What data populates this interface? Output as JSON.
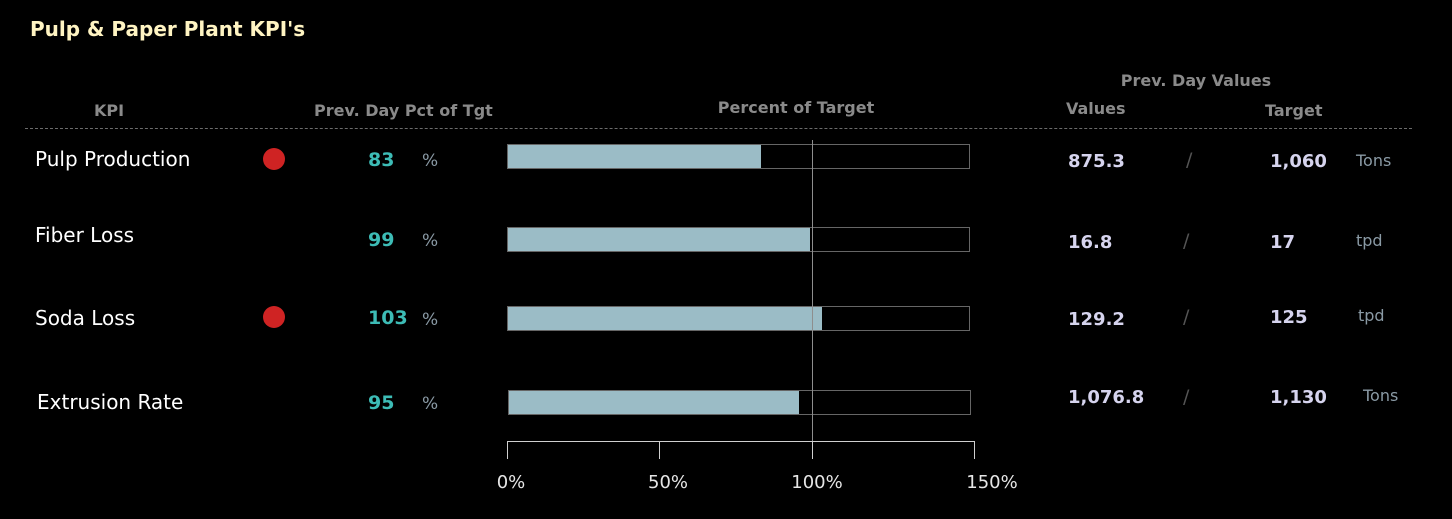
{
  "title": "Pulp & Paper Plant KPI's",
  "headers": {
    "kpi": "KPI",
    "prev_pct": "Prev. Day Pct of Tgt",
    "percent_of_target": "Percent of Target",
    "prev_day_values": "Prev. Day Values",
    "values": "Values",
    "target": "Target"
  },
  "colors": {
    "alert": "#cf2323",
    "bar": "#9bbcc6",
    "pct_text": "#3dbcb6",
    "title": "#fff4c2"
  },
  "chart_data": {
    "type": "bar",
    "orientation": "horizontal",
    "categories": [
      "Pulp Production",
      "Fiber Loss",
      "Soda Loss",
      "Extrusion Rate"
    ],
    "values": [
      83,
      99,
      103,
      95
    ],
    "target_line": 100,
    "xlim": [
      0,
      150
    ],
    "ticks": [
      "0%",
      "50%",
      "100%",
      "150%"
    ],
    "xlabel": "Percent of Target"
  },
  "rows": [
    {
      "name": "Pulp Production",
      "alert": true,
      "pct": "83",
      "pct_unit": "%",
      "value": "875.3",
      "slash": "/",
      "target": "1,060",
      "unit": "Tons"
    },
    {
      "name": "Fiber Loss",
      "alert": false,
      "pct": "99",
      "pct_unit": "%",
      "value": "16.8",
      "slash": "/",
      "target": "17",
      "unit": "tpd"
    },
    {
      "name": "Soda Loss",
      "alert": true,
      "pct": "103",
      "pct_unit": "%",
      "value": "129.2",
      "slash": "/",
      "target": "125",
      "unit": "tpd"
    },
    {
      "name": "Extrusion Rate",
      "alert": false,
      "pct": "95",
      "pct_unit": "%",
      "value": "1,076.8",
      "slash": "/",
      "target": "1,130",
      "unit": "Tons"
    }
  ]
}
